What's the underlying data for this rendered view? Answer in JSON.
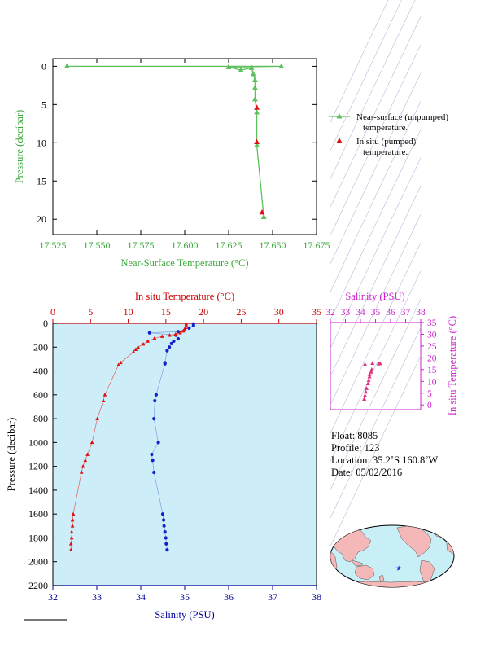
{
  "chart_data": [
    {
      "type": "line",
      "id": "near-surface",
      "xlabel": "Near-Surface Temperature (°C)",
      "ylabel": "Pressure (decibar)",
      "xlim": [
        17.525,
        17.675
      ],
      "ylim": [
        22,
        -1
      ],
      "xticks": [
        "17.525",
        "17.550",
        "17.575",
        "17.600",
        "17.625",
        "17.650",
        "17.675"
      ],
      "yticks": [
        "0",
        "5",
        "10",
        "15",
        "20"
      ],
      "series": [
        {
          "name": "Near-surface (unpumped) temperature.",
          "color": "#5cc05c",
          "marker": "triangle",
          "points": [
            [
              17.533,
              0.0
            ],
            [
              17.655,
              0.0
            ],
            [
              17.625,
              0.1
            ],
            [
              17.632,
              0.5
            ],
            [
              17.638,
              0.2
            ],
            [
              17.639,
              1.0
            ],
            [
              17.64,
              1.8
            ],
            [
              17.64,
              2.8
            ],
            [
              17.64,
              4.3
            ],
            [
              17.641,
              6.0
            ],
            [
              17.641,
              10.3
            ],
            [
              17.645,
              19.7
            ]
          ]
        },
        {
          "name": "In situ (pumped) temperature.",
          "color": "#dd1111",
          "marker": "triangle",
          "points": [
            [
              17.641,
              5.4
            ],
            [
              17.641,
              9.9
            ],
            [
              17.644,
              19.1
            ]
          ]
        }
      ]
    },
    {
      "type": "line",
      "id": "profile",
      "x_top_label": "In situ Temperature (°C)",
      "x_bottom_label": "Salinity (PSU)",
      "ylabel": "Pressure (decibar)",
      "temp_lim": [
        0,
        35
      ],
      "sal_lim": [
        32,
        38
      ],
      "ylim": [
        2200,
        0
      ],
      "temp_ticks": [
        "0",
        "5",
        "10",
        "15",
        "20",
        "25",
        "30",
        "35"
      ],
      "sal_ticks": [
        "32",
        "33",
        "34",
        "35",
        "36",
        "37",
        "38"
      ],
      "yticks": [
        "0",
        "200",
        "400",
        "600",
        "800",
        "1000",
        "1200",
        "1400",
        "1600",
        "1800",
        "2000",
        "2200"
      ],
      "temperature": {
        "color": "#dd1111",
        "points": [
          [
            17.7,
            5
          ],
          [
            17.7,
            20
          ],
          [
            17.6,
            35
          ],
          [
            17.5,
            50
          ],
          [
            17.3,
            65
          ],
          [
            16.9,
            80
          ],
          [
            16.3,
            90
          ],
          [
            15.5,
            100
          ],
          [
            14.5,
            110
          ],
          [
            13.5,
            125
          ],
          [
            12.6,
            150
          ],
          [
            12.0,
            175
          ],
          [
            11.3,
            200
          ],
          [
            11.0,
            220
          ],
          [
            10.7,
            240
          ],
          [
            9.0,
            330
          ],
          [
            8.7,
            350
          ],
          [
            6.9,
            600
          ],
          [
            6.7,
            650
          ],
          [
            5.9,
            800
          ],
          [
            5.2,
            1000
          ],
          [
            4.6,
            1100
          ],
          [
            4.3,
            1150
          ],
          [
            4.0,
            1200
          ],
          [
            3.8,
            1250
          ],
          [
            2.7,
            1600
          ],
          [
            2.6,
            1650
          ],
          [
            2.6,
            1700
          ],
          [
            2.5,
            1750
          ],
          [
            2.5,
            1800
          ],
          [
            2.4,
            1850
          ],
          [
            2.4,
            1900
          ]
        ]
      },
      "salinity": {
        "color": "#1122cc",
        "points": [
          [
            35.2,
            5
          ],
          [
            35.2,
            20
          ],
          [
            35.1,
            40
          ],
          [
            34.85,
            70
          ],
          [
            34.2,
            80
          ],
          [
            34.8,
            100
          ],
          [
            34.85,
            130
          ],
          [
            34.75,
            150
          ],
          [
            34.7,
            170
          ],
          [
            34.65,
            200
          ],
          [
            34.6,
            230
          ],
          [
            34.55,
            330
          ],
          [
            34.55,
            340
          ],
          [
            34.35,
            600
          ],
          [
            34.32,
            650
          ],
          [
            34.3,
            800
          ],
          [
            34.4,
            1000
          ],
          [
            34.25,
            1100
          ],
          [
            34.27,
            1150
          ],
          [
            34.3,
            1250
          ],
          [
            34.5,
            1600
          ],
          [
            34.52,
            1650
          ],
          [
            34.53,
            1700
          ],
          [
            34.55,
            1750
          ],
          [
            34.57,
            1800
          ],
          [
            34.58,
            1850
          ],
          [
            34.6,
            1900
          ]
        ]
      }
    },
    {
      "type": "scatter",
      "id": "ts-diagram",
      "xlabel": "Salinity (PSU)",
      "ylabel": "In situ Temperature (°C)",
      "xlim": [
        32,
        38
      ],
      "ylim": [
        -2,
        35
      ],
      "xticks": [
        "32",
        "33",
        "34",
        "35",
        "36",
        "37",
        "38"
      ],
      "yticks": [
        "0",
        "5",
        "10",
        "15",
        "20",
        "25",
        "30",
        "35"
      ],
      "color": "#e0307a",
      "points": [
        [
          34.25,
          2.5
        ],
        [
          34.3,
          4.0
        ],
        [
          34.35,
          5.5
        ],
        [
          34.4,
          7.0
        ],
        [
          34.5,
          9.0
        ],
        [
          34.55,
          10.5
        ],
        [
          34.6,
          12.0
        ],
        [
          34.7,
          14.0
        ],
        [
          34.75,
          15.0
        ],
        [
          34.3,
          17.2
        ],
        [
          34.8,
          17.7
        ],
        [
          35.2,
          17.5
        ],
        [
          35.3,
          17.6
        ],
        [
          34.6,
          13.0
        ]
      ]
    }
  ],
  "legend": {
    "near_surface": [
      "Near-surface (unpumped)",
      "temperature."
    ],
    "in_situ": [
      "In situ (pumped)",
      "temperature."
    ]
  },
  "info": {
    "float": "Float:  8085",
    "profile": "Profile:  123",
    "location": "Location:  35.2˚S  160.8˚W",
    "date": "Date:  05/02/2016"
  },
  "map": {
    "land_color": "#f4b8b8",
    "ocean_color": "#c8eef6",
    "marker_color": "#2233dd",
    "float_lon": -160.8,
    "float_lat": -35.2
  },
  "colors": {
    "near_surface_axis": "#3aa83a",
    "temp_axis": "#cc0000",
    "sal_axis": "#000099",
    "ts_axis": "#cc22cc",
    "profile_bg": "#cdeef8"
  }
}
